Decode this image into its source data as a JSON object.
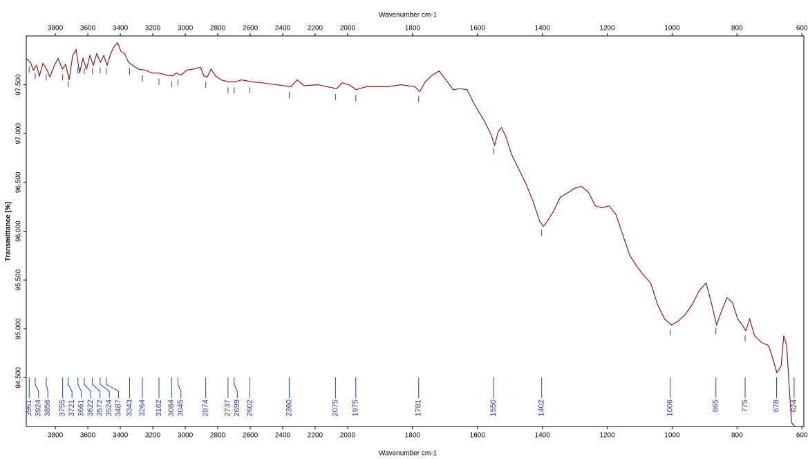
{
  "chart_data": {
    "type": "line",
    "x_label": "Wavenumber cm-1",
    "y_label": "Transmittance [%]",
    "color": "#8b1a1a",
    "peak_color": "#1f3fbf",
    "xlim": [
      3979,
      594
    ],
    "x_scale_change": 2000,
    "xticks": [
      3800,
      3600,
      3400,
      3200,
      3000,
      2800,
      2600,
      2400,
      2200,
      2000,
      1800,
      1600,
      1400,
      1200,
      1000,
      800,
      600
    ],
    "ylim": [
      94,
      98
    ],
    "yticks": [
      {
        "value": 94.5,
        "label": "94.500"
      },
      {
        "value": 95,
        "label": "95.000"
      },
      {
        "value": 95.5,
        "label": "95.500"
      },
      {
        "value": 96,
        "label": "96.000"
      },
      {
        "value": 96.5,
        "label": "96.500"
      },
      {
        "value": 97,
        "label": "97.000"
      },
      {
        "value": 97.5,
        "label": "97.500"
      }
    ],
    "x": [
      3979,
      3953,
      3936,
      3915,
      3898,
      3876,
      3851,
      3834,
      3808,
      3783,
      3757,
      3736,
      3715,
      3693,
      3672,
      3651,
      3630,
      3608,
      3587,
      3566,
      3545,
      3523,
      3502,
      3481,
      3459,
      3438,
      3417,
      3396,
      3374,
      3349,
      3323,
      3289,
      3247,
      3204,
      3162,
      3119,
      3077,
      3055,
      3025,
      2991,
      2949,
      2906,
      2885,
      2864,
      2842,
      2813,
      2779,
      2736,
      2694,
      2651,
      2591,
      2523,
      2438,
      2349,
      2311,
      2268,
      2183,
      2068,
      2034,
      1996,
      1974,
      1942,
      1878,
      1835,
      1793,
      1778,
      1761,
      1739,
      1718,
      1697,
      1675,
      1654,
      1632,
      1611,
      1579,
      1558,
      1547,
      1536,
      1526,
      1515,
      1494,
      1472,
      1451,
      1429,
      1408,
      1397,
      1387,
      1365,
      1344,
      1323,
      1301,
      1280,
      1258,
      1237,
      1216,
      1194,
      1173,
      1152,
      1130,
      1109,
      1088,
      1066,
      1045,
      1023,
      1002,
      981,
      959,
      938,
      917,
      895,
      878,
      863,
      848,
      831,
      814,
      799,
      784,
      773,
      761,
      746,
      724,
      703,
      692,
      677,
      664,
      656,
      647,
      639,
      632,
      622
    ],
    "values": [
      97.77,
      97.73,
      97.65,
      97.7,
      97.59,
      97.72,
      97.65,
      97.58,
      97.69,
      97.77,
      97.66,
      97.71,
      97.55,
      97.8,
      97.86,
      97.62,
      97.77,
      97.66,
      97.8,
      97.7,
      97.82,
      97.73,
      97.8,
      97.7,
      97.82,
      97.89,
      97.93,
      97.84,
      97.82,
      97.73,
      97.7,
      97.66,
      97.65,
      97.62,
      97.62,
      97.6,
      97.59,
      97.62,
      97.6,
      97.65,
      97.66,
      97.68,
      97.59,
      97.58,
      97.66,
      97.59,
      97.55,
      97.53,
      97.53,
      97.55,
      97.53,
      97.52,
      97.5,
      97.48,
      97.55,
      97.49,
      97.5,
      97.46,
      97.52,
      97.5,
      97.45,
      97.48,
      97.48,
      97.5,
      97.48,
      97.43,
      97.53,
      97.6,
      97.64,
      97.55,
      97.45,
      97.46,
      97.45,
      97.31,
      97.13,
      96.99,
      96.88,
      97.02,
      97.06,
      96.99,
      96.78,
      96.63,
      96.49,
      96.31,
      96.1,
      96.05,
      96.09,
      96.21,
      96.35,
      96.39,
      96.44,
      96.46,
      96.4,
      96.26,
      96.24,
      96.26,
      96.17,
      95.96,
      95.75,
      95.64,
      95.55,
      95.47,
      95.25,
      95.1,
      95.04,
      95.08,
      95.15,
      95.25,
      95.39,
      95.47,
      95.25,
      95.04,
      95.18,
      95.32,
      95.27,
      95.11,
      95.04,
      94.98,
      95.1,
      94.93,
      94.86,
      94.83,
      94.72,
      94.55,
      94.62,
      94.93,
      94.83,
      94.4,
      94.04,
      94.0
    ],
    "peaks": [
      3961,
      3924,
      3856,
      3755,
      3721,
      3661,
      3622,
      3572,
      3524,
      3487,
      3343,
      3264,
      3162,
      3084,
      3045,
      2874,
      2737,
      2699,
      2602,
      2360,
      2075,
      1975,
      1781,
      1550,
      1402,
      1006,
      865,
      775,
      678,
      624
    ]
  }
}
